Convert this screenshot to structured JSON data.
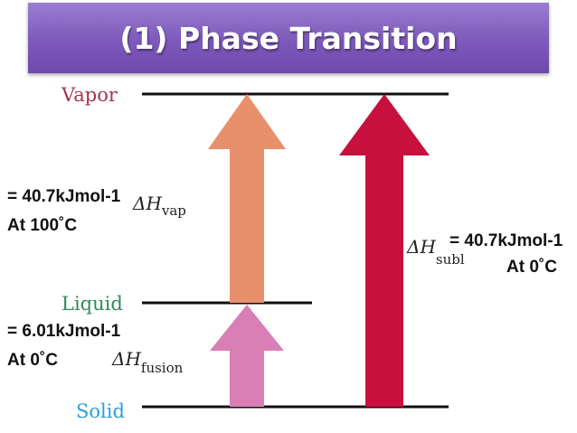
{
  "title": "(1) Phase Transition",
  "states": {
    "vapor": {
      "label": "Vapor",
      "color": "#a8324a"
    },
    "liquid": {
      "label": "Liquid",
      "color": "#2e8b57"
    },
    "solid": {
      "label": "Solid",
      "color": "#2b9fd6"
    }
  },
  "arrows": {
    "vap": {
      "symbol": "ΔH",
      "subscript": "vap",
      "value": "= 40.7kJmol-1",
      "condition": "At 100˚C",
      "color": "#e8906b"
    },
    "fusion": {
      "symbol": "ΔH",
      "subscript": "fusion",
      "value": "= 6.01kJmol-1",
      "condition": "At 0˚C",
      "color": "#d97fb5"
    },
    "subl": {
      "symbol": "ΔH",
      "subscript": "subl",
      "value": "= 40.7kJmol-1",
      "condition": "At 0˚C",
      "color": "#c8103e"
    }
  }
}
